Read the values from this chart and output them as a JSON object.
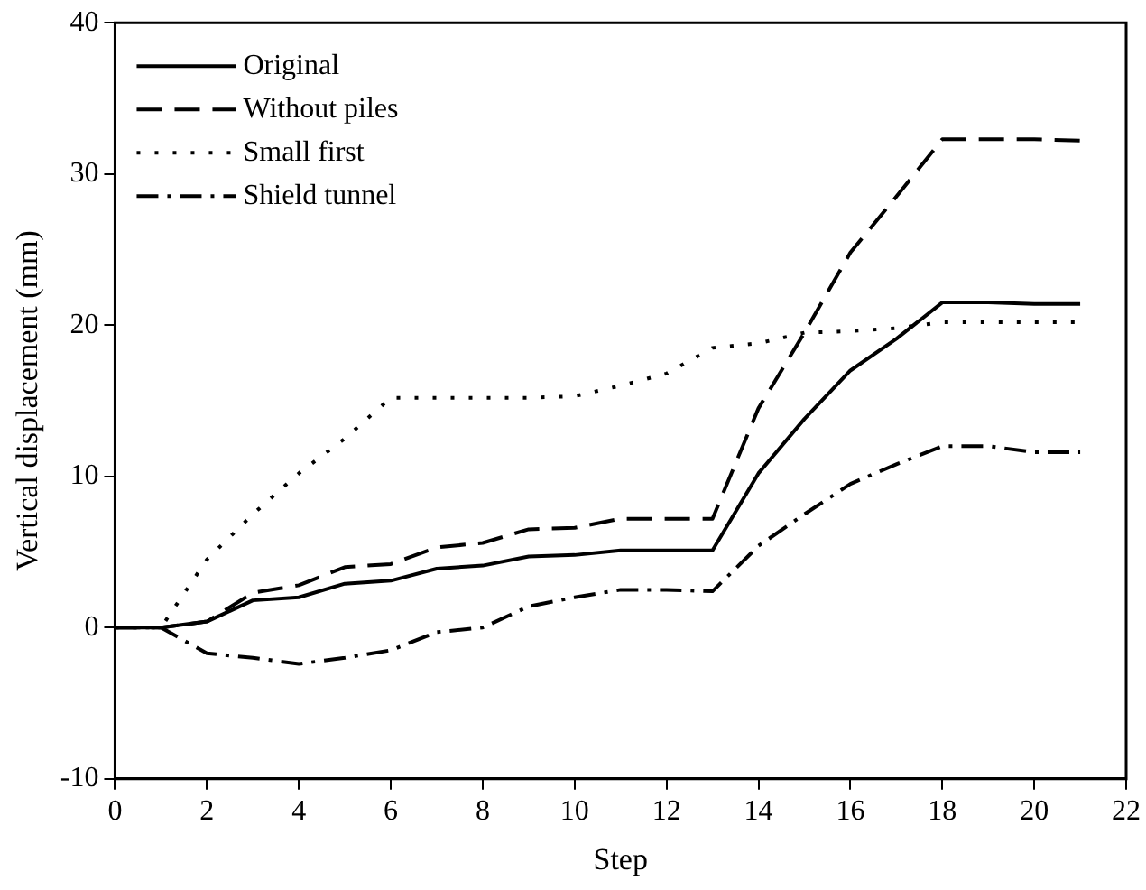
{
  "chart_data": {
    "type": "line",
    "xlabel": "Step",
    "ylabel": "Vertical displacement (mm)",
    "x": [
      0,
      1,
      2,
      3,
      4,
      5,
      6,
      7,
      8,
      9,
      10,
      11,
      12,
      13,
      14,
      15,
      16,
      17,
      18,
      19,
      20,
      21
    ],
    "series": [
      {
        "name": "Original",
        "color": "#000000",
        "line_style": "solid",
        "values": [
          0,
          0,
          0.4,
          1.8,
          2.0,
          2.9,
          3.1,
          3.9,
          4.1,
          4.7,
          4.8,
          5.1,
          5.1,
          5.1,
          10.2,
          13.8,
          17.0,
          19.1,
          21.5,
          21.5,
          21.4,
          21.4
        ]
      },
      {
        "name": "Without piles",
        "color": "#000000",
        "line_style": "dashed",
        "values": [
          0,
          0,
          0.4,
          2.3,
          2.8,
          4.0,
          4.2,
          5.3,
          5.6,
          6.5,
          6.6,
          7.2,
          7.2,
          7.2,
          14.5,
          19.5,
          24.8,
          28.5,
          32.3,
          32.3,
          32.3,
          32.2
        ]
      },
      {
        "name": "Small first",
        "color": "#000000",
        "line_style": "dotted",
        "values": [
          0,
          0,
          4.5,
          7.5,
          10.2,
          12.5,
          15.2,
          15.2,
          15.2,
          15.2,
          15.3,
          16.0,
          16.8,
          18.5,
          18.8,
          19.5,
          19.6,
          19.8,
          20.2,
          20.2,
          20.2,
          20.2
        ]
      },
      {
        "name": "Shield tunnel",
        "color": "#000000",
        "line_style": "dashdot",
        "values": [
          0,
          0,
          -1.7,
          -2.0,
          -2.4,
          -2.0,
          -1.5,
          -0.3,
          0,
          1.4,
          2.0,
          2.5,
          2.5,
          2.4,
          5.4,
          7.5,
          9.5,
          10.8,
          12.0,
          12.0,
          11.6,
          11.6
        ]
      }
    ],
    "xlim": [
      0,
      22
    ],
    "xticks": [
      0,
      2,
      4,
      6,
      8,
      10,
      12,
      14,
      16,
      18,
      20,
      22
    ],
    "ylim": [
      -10,
      40
    ],
    "yticks": [
      -10,
      0,
      10,
      20,
      30,
      40
    ],
    "grid": false,
    "legend": "top left",
    "marker": "none"
  }
}
